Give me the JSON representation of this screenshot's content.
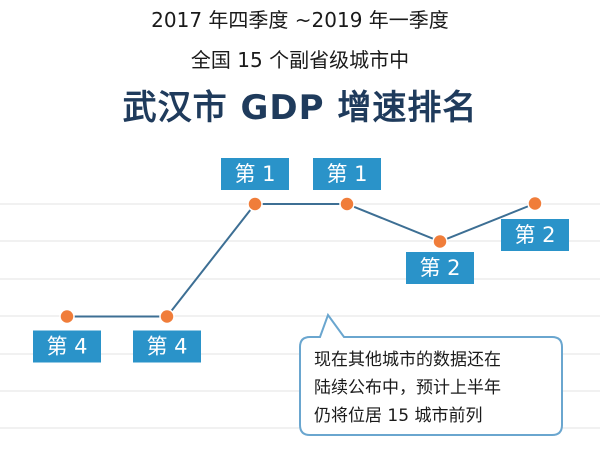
{
  "heading": {
    "line1": "2017 年四季度 ~2019 年一季度",
    "line2": "全国 15 个副省级城市中",
    "line3": "武汉市 GDP 增速排名"
  },
  "chart_data": {
    "type": "line",
    "title": "武汉市 GDP 增速排名",
    "categories": [
      "",
      "",
      "",
      "",
      "",
      ""
    ],
    "values": [
      4,
      4,
      1,
      1,
      2,
      2
    ],
    "point_labels": [
      "第 4",
      "第 4",
      "第 1",
      "第 1",
      "第 2",
      "第 2"
    ],
    "y_scale": "rank",
    "grid": true,
    "note": [
      "现在其他城市的数据还在",
      "陆续公布中，预计上半年",
      "仍将位居 15 城市前列"
    ]
  },
  "colors": {
    "line": "#3d6f94",
    "marker": "#f07d3a",
    "label_bg": "#2a93c9",
    "grid": "#e3e3e3",
    "note_border": "#6aa6cf",
    "title_dark": "#1f3b5c"
  }
}
